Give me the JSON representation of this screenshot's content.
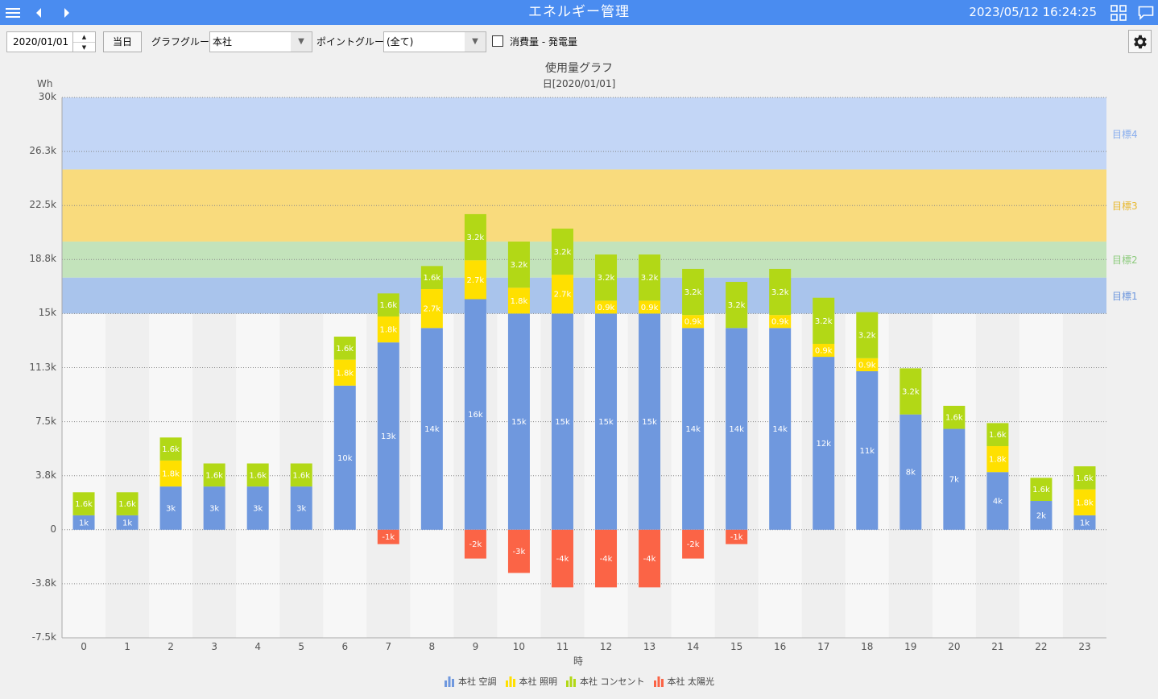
{
  "header": {
    "title": "エネルギー管理",
    "datetime": "2023/05/12 16:24:25",
    "icons": [
      "menu-icon",
      "prev-icon",
      "next-icon",
      "grid-view-icon",
      "message-icon"
    ]
  },
  "toolbar": {
    "date_value": "2020/01/01",
    "today_label": "当日",
    "graph_group_label": "グラフグループ:",
    "graph_group_value": "本社",
    "point_group_label": "ポイントグループ:",
    "point_group_value": "(全て)",
    "consumption_label": "消費量 - 発電量",
    "consumption_checked": false
  },
  "chart_data": {
    "type": "bar",
    "stacked": true,
    "title": "使用量グラフ",
    "subtitle": "日[2020/01/01]",
    "ylabel": "Wh",
    "xlabel": "時",
    "ylim": [
      -7500,
      30000
    ],
    "yticks": [
      "30k",
      "26.3k",
      "22.5k",
      "18.8k",
      "15k",
      "11.3k",
      "7.5k",
      "3.8k",
      "0",
      "-3.8k",
      "-7.5k"
    ],
    "categories": [
      "0",
      "1",
      "2",
      "3",
      "4",
      "5",
      "6",
      "7",
      "8",
      "9",
      "10",
      "11",
      "12",
      "13",
      "14",
      "15",
      "16",
      "17",
      "18",
      "19",
      "20",
      "21",
      "22",
      "23"
    ],
    "series": [
      {
        "name": "本社 空調",
        "color": "#6f98de",
        "values": [
          1000,
          1000,
          3000,
          3000,
          3000,
          3000,
          10000,
          13000,
          14000,
          16000,
          15000,
          15000,
          15000,
          15000,
          14000,
          14000,
          14000,
          12000,
          11000,
          8000,
          7000,
          4000,
          2000,
          1000
        ],
        "labels": [
          "1k",
          "1k",
          "3k",
          "3k",
          "3k",
          "3k",
          "10k",
          "13k",
          "14k",
          "16k",
          "15k",
          "15k",
          "15k",
          "15k",
          "14k",
          "14k",
          "14k",
          "12k",
          "11k",
          "8k",
          "7k",
          "4k",
          "2k",
          "1k"
        ]
      },
      {
        "name": "本社 照明",
        "color": "#ffe000",
        "values": [
          0,
          0,
          1800,
          0,
          0,
          0,
          1800,
          1800,
          2700,
          2700,
          1800,
          2700,
          900,
          900,
          900,
          0,
          900,
          900,
          900,
          0,
          0,
          1800,
          0,
          1800
        ],
        "labels": [
          "",
          "",
          "1.8k",
          "",
          "",
          "",
          "1.8k",
          "1.8k",
          "2.7k",
          "2.7k",
          "1.8k",
          "2.7k",
          "0.9k",
          "0.9k",
          "0.9k",
          "",
          "0.9k",
          "0.9k",
          "0.9k",
          "",
          "",
          "1.8k",
          "",
          "1.8k"
        ]
      },
      {
        "name": "本社 コンセント",
        "color": "#b2d816",
        "values": [
          1600,
          1600,
          1600,
          1600,
          1600,
          1600,
          1600,
          1600,
          1600,
          3200,
          3200,
          3200,
          3200,
          3200,
          3200,
          3200,
          3200,
          3200,
          3200,
          3200,
          1600,
          1600,
          1600,
          1600
        ],
        "labels": [
          "1.6k",
          "1.6k",
          "1.6k",
          "1.6k",
          "1.6k",
          "1.6k",
          "1.6k",
          "1.6k",
          "1.6k",
          "3.2k",
          "3.2k",
          "3.2k",
          "3.2k",
          "3.2k",
          "3.2k",
          "3.2k",
          "3.2k",
          "3.2k",
          "3.2k",
          "3.2k",
          "1.6k",
          "1.6k",
          "1.6k",
          "1.6k"
        ]
      },
      {
        "name": "本社 太陽光",
        "color": "#fb6446",
        "values": [
          0,
          0,
          0,
          0,
          0,
          0,
          0,
          -1000,
          0,
          -2000,
          -3000,
          -4000,
          -4000,
          -4000,
          -2000,
          -1000,
          0,
          0,
          0,
          0,
          0,
          0,
          0,
          0
        ],
        "labels": [
          "",
          "",
          "",
          "",
          "",
          "",
          "",
          "-1k",
          "",
          "-2k",
          "-3k",
          "-4k",
          "-4k",
          "-4k",
          "-2k",
          "-1k",
          "",
          "",
          "",
          "",
          "",
          "",
          "",
          ""
        ]
      }
    ],
    "target_bands": [
      {
        "name": "目標1",
        "from": 15000,
        "to": 17500,
        "color": "#a9c4ec",
        "label_color": "#6f98de"
      },
      {
        "name": "目標2",
        "from": 17500,
        "to": 20000,
        "color": "#c3e3bb",
        "label_color": "#8ecb7e"
      },
      {
        "name": "目標3",
        "from": 20000,
        "to": 25000,
        "color": "#f9db7d",
        "label_color": "#e8b930"
      },
      {
        "name": "目標4",
        "from": 25000,
        "to": 30000,
        "color": "#c3d6f6",
        "label_color": "#89aeee"
      }
    ],
    "legend_position": "bottom",
    "grid": true
  }
}
